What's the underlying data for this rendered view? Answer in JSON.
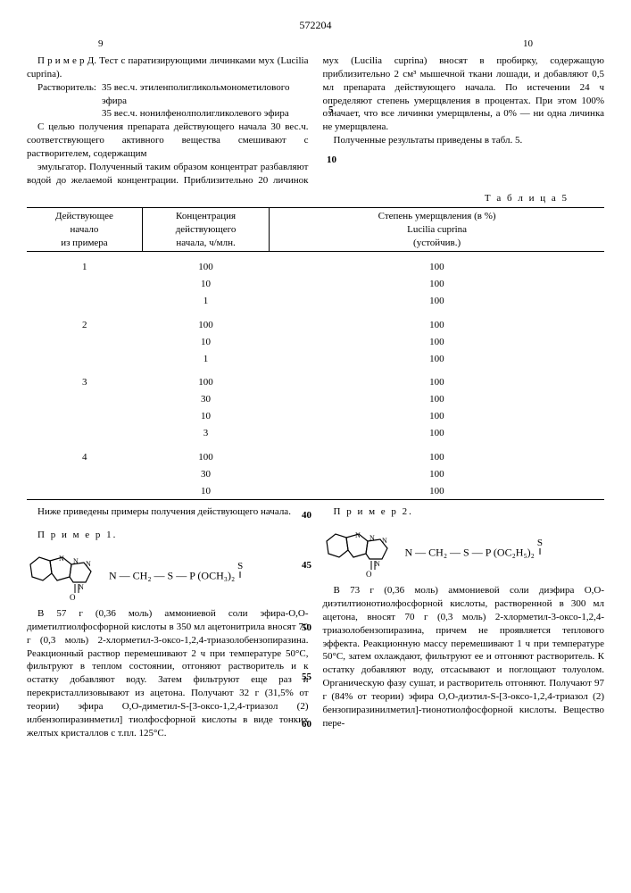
{
  "doc_number": "572204",
  "page_left": "9",
  "page_right": "10",
  "left_col": {
    "p1": "П р и м е р Д. Тест с паратизирующими личинками мух (Lucilia cuprina).",
    "solvent_label": "Растворитель:",
    "solvent_line1": "35 вес.ч. этиленполигликольмонометилового эфира",
    "solvent_line2": "35 вес.ч. нонилфенолполигликолевого эфира",
    "p2": "С целью получения препарата действующего начала 30 вес.ч. соответствующего активного вещества смешивают с растворителем, содержащим"
  },
  "right_col": {
    "p1": "эмульгатор. Полученный таким образом концентрат разбавляют водой до желаемой концентрации. Приблизительно 20 личинок мух (Lucilia cuprina) вносят в пробирку, содержащую приблизительно 2 см³ мышечной ткани лошади, и добавляют 0,5 мл препарата действующего начала. По истечении 24 ч определяют степень умерщвления в процентах. При этом 100% означает, что все личинки умерщвлены, а 0% — ни одна личинка не умерщвлена.",
    "p2": "Полученные результаты приведены в табл. 5."
  },
  "table5": {
    "caption": "Т а б л и ц а 5",
    "headers": {
      "c1a": "Действующее",
      "c1b": "начало",
      "c1c": "из примера",
      "c2a": "Концентрация",
      "c2b": "действующего",
      "c2c": "начала, ч/млн.",
      "c3a": "Степень умерщвления (в %)",
      "c3b": "Lucilia cuprina",
      "c3c": "(устойчив.)"
    },
    "rows": [
      {
        "ex": "1",
        "conc": "100",
        "kill": "100",
        "group": true
      },
      {
        "ex": "",
        "conc": "10",
        "kill": "100"
      },
      {
        "ex": "",
        "conc": "1",
        "kill": "100"
      },
      {
        "ex": "2",
        "conc": "100",
        "kill": "100",
        "group": true
      },
      {
        "ex": "",
        "conc": "10",
        "kill": "100"
      },
      {
        "ex": "",
        "conc": "1",
        "kill": "100"
      },
      {
        "ex": "3",
        "conc": "100",
        "kill": "100",
        "group": true
      },
      {
        "ex": "",
        "conc": "30",
        "kill": "100"
      },
      {
        "ex": "",
        "conc": "10",
        "kill": "100"
      },
      {
        "ex": "",
        "conc": "3",
        "kill": "100"
      },
      {
        "ex": "4",
        "conc": "100",
        "kill": "100",
        "group": true
      },
      {
        "ex": "",
        "conc": "30",
        "kill": "100"
      },
      {
        "ex": "",
        "conc": "10",
        "kill": "100"
      }
    ]
  },
  "below": {
    "intro": "Ниже приведены примеры получения действующего начала.",
    "ex1_label": "П р и м е р 1.",
    "ex1_formula_tail": "— CH₂ — S — P (OCH₃)₂",
    "ex1_body": "В 57 г (0,36 моль) аммониевой соли эфира-О,О-диметилтиолфосфорной кислоты в 350 мл ацетонитрила вносят 70 г (0,3 моль) 2-хлорметил-3-оксо-1,2,4-триазолобензопиразина. Реакционный раствор перемешивают 2 ч при температуре 50°C, фильтруют в теплом состоянии, отгоняют растворитель и к остатку добавляют воду. Затем фильтруют еще раз и перекристаллизовывают из ацетона. Получают 32 г (31,5% от теории) эфира О,О-диметил-S-[3-оксо-1,2,4-триазол (2) илбензопиразинметил] тиолфосфорной кислоты в виде тонких желтых кристаллов с т.пл. 125°C.",
    "ex2_label": "П р и м е р 2.",
    "ex2_formula_tail": "— CH₂ — S — P (OC₂H₅)₂",
    "ex2_body": "В 73 г (0,36 моль) аммониевой соли диэфира О,О-диэтилтионотиолфосфорной кислоты, растворенной в 300 мл ацетона, вносят 70 г (0,3 моль) 2-хлорметил-3-оксо-1,2,4-триазолобензопиразина, причем не проявляется теплового эффекта. Реакционную массу перемешивают 1 ч при температуре 50°C, затем охлаждают, фильтруют ее и отгоняют растворитель. К остатку добавляют воду, отсасывают и поглощают толуолом. Органическую фазу сушат, и растворитель отгоняют. Получают 97 г (84% от теории) эфира О,О-диэтил-S-[3-оксо-1,2,4-триазол (2) бензопиразинилметил]-тионотиолфосфорной кислоты. Вещество пере-"
  },
  "margin_lines": {
    "l5": "5",
    "l10": "10",
    "l40": "40",
    "l45": "45",
    "l50": "50",
    "l55": "55",
    "l60": "60"
  }
}
